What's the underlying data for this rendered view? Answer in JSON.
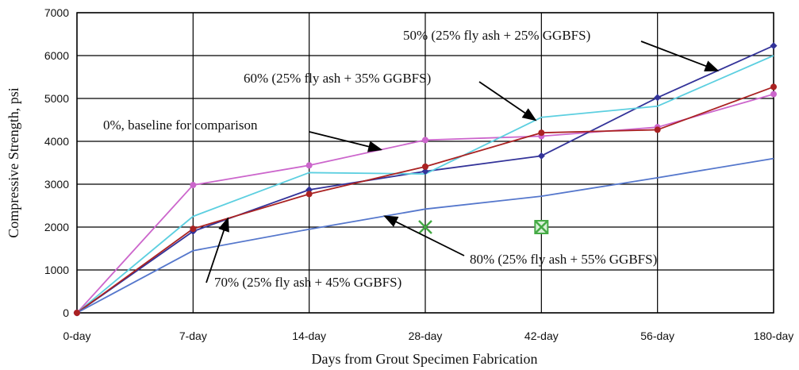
{
  "chart_data": {
    "type": "line",
    "title": "",
    "xlabel": "Days from Grout Specimen Fabrication",
    "ylabel": "Compressive Strength, psi",
    "categories": [
      "0-day",
      "7-day",
      "14-day",
      "28-day",
      "42-day",
      "56-day",
      "180-day"
    ],
    "ylim": [
      0,
      7000
    ],
    "yticks": [
      0,
      1000,
      2000,
      3000,
      4000,
      5000,
      6000,
      7000
    ],
    "grid": true,
    "series": [
      {
        "name": "0%, baseline for comparison",
        "color": "#cc66cc",
        "marker": "circle",
        "values": [
          0,
          2980,
          3440,
          4030,
          4120,
          4330,
          5100
        ]
      },
      {
        "name": "50% (25% fly ash + 25% GGBFS)",
        "color": "#333399",
        "marker": "diamond",
        "values": [
          0,
          1900,
          2870,
          3300,
          3660,
          5020,
          6230
        ]
      },
      {
        "name": "60% (25% fly ash + 35% GGBFS)",
        "color": "#5ccfe0",
        "marker": "none",
        "values": [
          0,
          2250,
          3270,
          3240,
          4560,
          4820,
          6000
        ]
      },
      {
        "name": "70% (25% fly ash + 45% GGBFS)",
        "color": "#aa2222",
        "marker": "circle",
        "values": [
          0,
          1960,
          2770,
          3410,
          4200,
          4270,
          5270
        ]
      },
      {
        "name": "80% (25% fly ash + 55% GGBFS)",
        "color": "#5577cc",
        "marker": "none",
        "values": [
          0,
          1450,
          1950,
          2420,
          2720,
          3150,
          3600
        ]
      }
    ],
    "extra_points": [
      {
        "category": "28-day",
        "value": 2000,
        "marker": "x",
        "color": "#44aa44"
      },
      {
        "category": "42-day",
        "value": 2000,
        "marker": "boxed-x",
        "color": "#44aa44"
      }
    ],
    "annotations": [
      {
        "text": "50% (25% fly ash + 25% GGBFS)",
        "series": "50% (25% fly ash + 25% GGBFS)"
      },
      {
        "text": "60% (25% fly ash + 35% GGBFS)",
        "series": "60% (25% fly ash + 35% GGBFS)"
      },
      {
        "text": "0%, baseline for comparison",
        "series": "0%, baseline for comparison"
      },
      {
        "text": "80% (25% fly ash + 55% GGBFS)",
        "series": "80% (25% fly ash + 55% GGBFS)"
      },
      {
        "text": "70% (25% fly ash + 45% GGBFS)",
        "series": "70% (25% fly ash + 45% GGBFS)"
      }
    ]
  }
}
